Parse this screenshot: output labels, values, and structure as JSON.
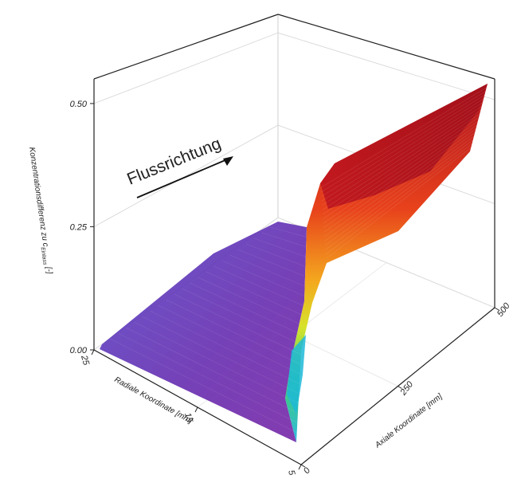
{
  "chart_data": {
    "type": "surface3d",
    "title": "",
    "annotation": "Flussrichtung",
    "zlabel": "Konzentrationsdifferenz zu c",
    "zlabel_subscript": "Einlass",
    "zlabel_unit": " [-]",
    "xlabel": "Radiale Koordinate [mm]",
    "ylabel": "Axiale Koordinate [mm]",
    "zlim": [
      0,
      0.55
    ],
    "xlim": [
      5,
      25
    ],
    "ylim": [
      0,
      500
    ],
    "z_ticks": [
      "0.00",
      "0.25",
      "0.50"
    ],
    "x_ticks": [
      "25",
      "15",
      "5"
    ],
    "y_ticks": [
      "0",
      "250",
      "500"
    ],
    "grid": true,
    "colormap": [
      "#5a2ca0",
      "#3f4fd6",
      "#1fb3e0",
      "#2fcf6a",
      "#c8e02a",
      "#f4a81e",
      "#e8421c",
      "#b0121e"
    ],
    "surface_samples": {
      "radial_mm": [
        25,
        15,
        5
      ],
      "axial_mm": [
        0,
        250,
        500
      ],
      "z": [
        [
          0.0,
          0.02,
          0.03
        ],
        [
          0.0,
          0.03,
          0.12
        ],
        [
          0.05,
          0.38,
          0.53
        ]
      ]
    }
  }
}
